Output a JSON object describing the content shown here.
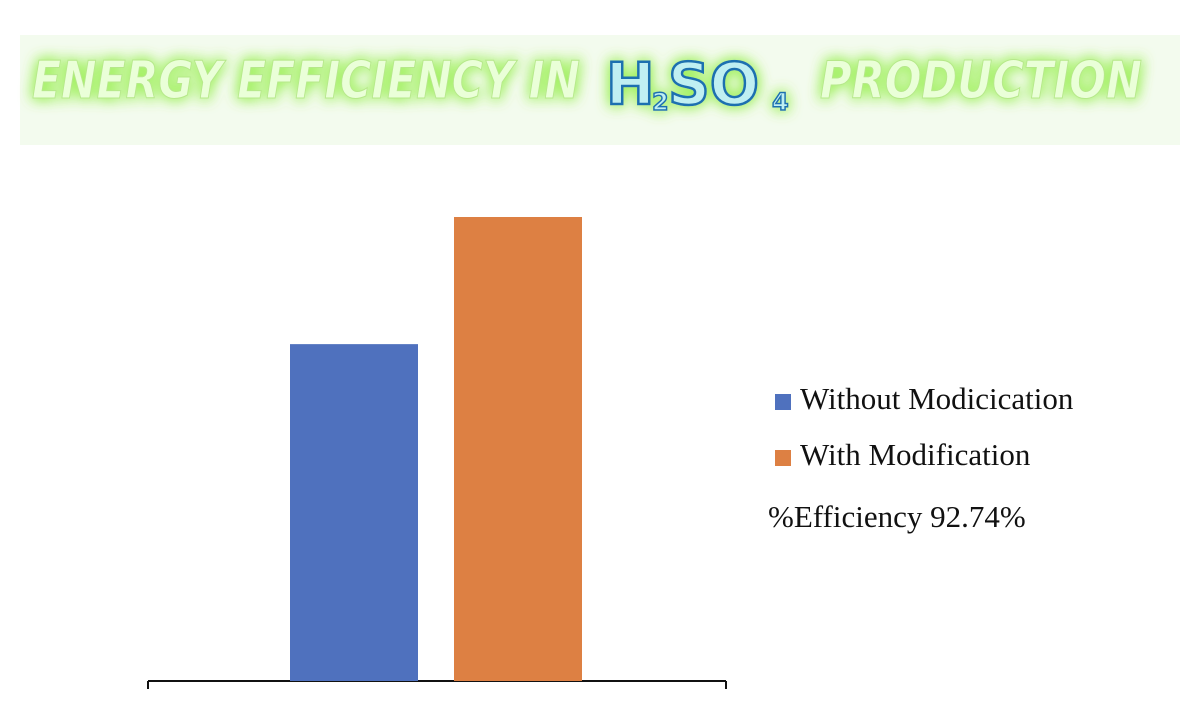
{
  "chart_data": {
    "type": "bar",
    "title": [
      "ENERGY EFFICIENCY IN",
      "H",
      "2",
      "SO",
      "4",
      "PRODUCTION"
    ],
    "categories": [
      null
    ],
    "series": [
      {
        "name": "Without Modicication",
        "color": "#4f71be",
        "values": [
          72.6
        ]
      },
      {
        "name": "With Modification",
        "color": "#dd8043",
        "values": [
          100
        ]
      }
    ],
    "annotation": "%Efficiency 92.74%",
    "ylim": [
      0,
      100
    ]
  }
}
